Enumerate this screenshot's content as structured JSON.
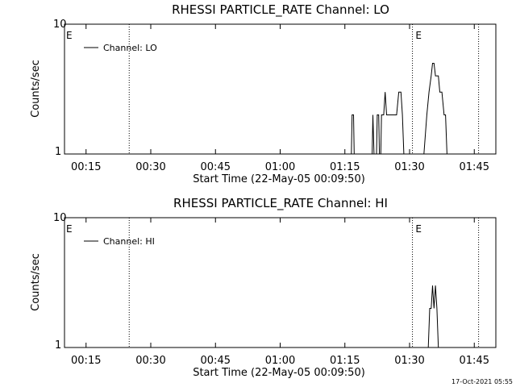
{
  "chart_data": [
    {
      "type": "line",
      "title": "RHESSI PARTICLE_RATE Channel: LO",
      "xlabel": "Start Time (22-May-05 00:09:50)",
      "ylabel": "Counts/sec",
      "y_scale": "log",
      "ylim": [
        1,
        10
      ],
      "y_ticks": [
        "1",
        "10"
      ],
      "xlim": [
        "00:10",
        "01:50"
      ],
      "x_ticks": [
        "00:15",
        "00:30",
        "00:45",
        "01:00",
        "01:15",
        "01:30",
        "01:45"
      ],
      "grid": false,
      "legend_position": "top-left",
      "series": [
        {
          "name": "Channel: LO",
          "color": "#000000",
          "points": [
            [
              "01:16:30",
              1
            ],
            [
              "01:16:40",
              2
            ],
            [
              "01:17:00",
              2
            ],
            [
              "01:17:10",
              1
            ],
            [
              "01:21:20",
              1
            ],
            [
              "01:21:30",
              2
            ],
            [
              "01:21:45",
              1
            ],
            [
              "01:22:20",
              1
            ],
            [
              "01:22:30",
              2
            ],
            [
              "01:22:50",
              2
            ],
            [
              "01:23:00",
              1
            ],
            [
              "01:23:20",
              1
            ],
            [
              "01:23:30",
              2
            ],
            [
              "01:24:00",
              2
            ],
            [
              "01:24:20",
              3
            ],
            [
              "01:24:40",
              2
            ],
            [
              "01:27:00",
              2
            ],
            [
              "01:27:30",
              3
            ],
            [
              "01:28:00",
              3
            ],
            [
              "01:28:20",
              2
            ],
            [
              "01:28:40",
              1
            ],
            [
              "01:33:20",
              1
            ],
            [
              "01:34:00",
              2
            ],
            [
              "01:34:30",
              3
            ],
            [
              "01:35:00",
              4
            ],
            [
              "01:35:20",
              5
            ],
            [
              "01:35:40",
              5
            ],
            [
              "01:36:00",
              4
            ],
            [
              "01:36:20",
              4
            ],
            [
              "01:36:40",
              4
            ],
            [
              "01:37:00",
              3
            ],
            [
              "01:37:30",
              3
            ],
            [
              "01:38:00",
              2
            ],
            [
              "01:38:20",
              2
            ],
            [
              "01:38:40",
              1
            ]
          ]
        }
      ],
      "markers": [
        {
          "label": "E",
          "time": "00:10"
        },
        {
          "label": "E",
          "time": "01:31"
        }
      ],
      "dotted_lines": [
        "00:25:00",
        "01:30:40",
        "01:46:00"
      ]
    },
    {
      "type": "line",
      "title": "RHESSI PARTICLE_RATE Channel: HI",
      "xlabel": "Start Time (22-May-05 00:09:50)",
      "ylabel": "Counts/sec",
      "y_scale": "log",
      "ylim": [
        1,
        10
      ],
      "y_ticks": [
        "1",
        "10"
      ],
      "xlim": [
        "00:10",
        "01:50"
      ],
      "x_ticks": [
        "00:15",
        "00:30",
        "00:45",
        "01:00",
        "01:15",
        "01:30",
        "01:45"
      ],
      "grid": false,
      "legend_position": "top-left",
      "series": [
        {
          "name": "Channel: HI",
          "color": "#000000",
          "points": [
            [
              "01:34:20",
              1
            ],
            [
              "01:34:40",
              2
            ],
            [
              "01:35:00",
              2
            ],
            [
              "01:35:20",
              3
            ],
            [
              "01:35:40",
              2
            ],
            [
              "01:36:00",
              3
            ],
            [
              "01:36:20",
              2
            ],
            [
              "01:36:40",
              1
            ]
          ]
        }
      ],
      "markers": [
        {
          "label": "E",
          "time": "00:10"
        },
        {
          "label": "E",
          "time": "01:31"
        }
      ],
      "dotted_lines": [
        "00:25:00",
        "01:30:40",
        "01:46:00"
      ]
    }
  ],
  "footer": {
    "timestamp": "17-Oct-2021 05:55"
  }
}
